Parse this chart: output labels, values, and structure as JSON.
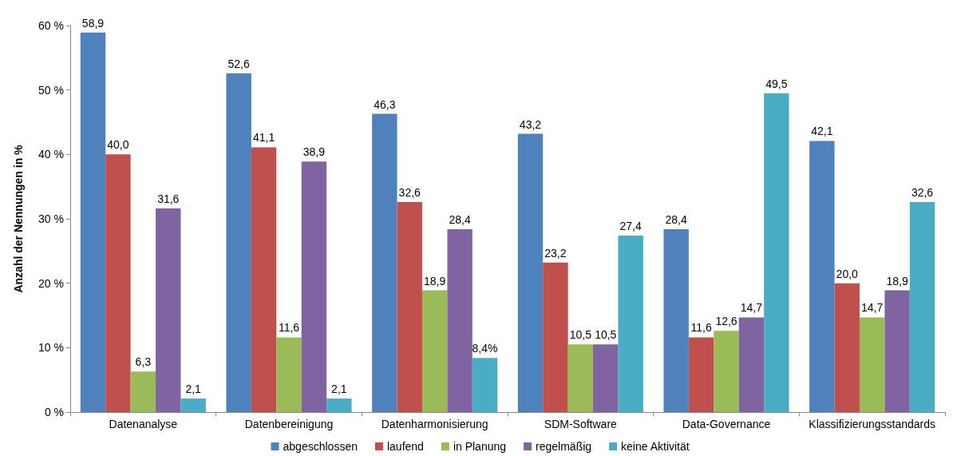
{
  "chart_data": {
    "type": "bar",
    "ylabel": "Anzahl der Nennungen in %",
    "categories": [
      "Datenanalyse",
      "Datenbereinigung",
      "Datenharmonisierung",
      "SDM-Software",
      "Data-Governance",
      "Klassifizierungsstandards"
    ],
    "series": [
      {
        "name": "abgeschlossen",
        "color": "#4f81bd",
        "values": [
          58.9,
          52.6,
          46.3,
          43.2,
          28.4,
          42.1
        ],
        "value_labels": [
          "58,9",
          "52,6",
          "46,3",
          "43,2",
          "28,4",
          "42,1"
        ]
      },
      {
        "name": "laufend",
        "color": "#c0504d",
        "values": [
          40.0,
          41.1,
          32.6,
          23.2,
          11.6,
          20.0
        ],
        "value_labels": [
          "40,0",
          "41,1",
          "32,6",
          "23,2",
          "11,6",
          "20,0"
        ]
      },
      {
        "name": "in Planung",
        "color": "#9bbb59",
        "values": [
          6.3,
          11.6,
          18.9,
          10.5,
          12.6,
          14.7
        ],
        "value_labels": [
          "6,3",
          "11,6",
          "18,9",
          "10,5",
          "12,6",
          "14,7"
        ]
      },
      {
        "name": "regelmäßig",
        "color": "#8064a2",
        "values": [
          31.6,
          38.9,
          28.4,
          10.5,
          14.7,
          18.9
        ],
        "value_labels": [
          "31,6",
          "38,9",
          "28,4",
          "10,5",
          "14,7",
          "18,9"
        ]
      },
      {
        "name": "keine Aktivität",
        "color": "#4bacc6",
        "values": [
          2.1,
          2.1,
          8.4,
          27.4,
          49.5,
          32.6
        ],
        "value_labels": [
          "2,1",
          "2,1",
          "8,4%",
          "27,4",
          "49,5",
          "32,6"
        ]
      }
    ],
    "ylim": [
      0,
      60
    ],
    "yticks": [
      {
        "value": 0,
        "label": "0 %"
      },
      {
        "value": 10,
        "label": "10 %"
      },
      {
        "value": 20,
        "label": "20 %"
      },
      {
        "value": 30,
        "label": "30 %"
      },
      {
        "value": 40,
        "label": "40 %"
      },
      {
        "value": 50,
        "label": "50 %"
      },
      {
        "value": 60,
        "label": "60 %"
      }
    ],
    "grid": false,
    "legend": "bottom"
  }
}
